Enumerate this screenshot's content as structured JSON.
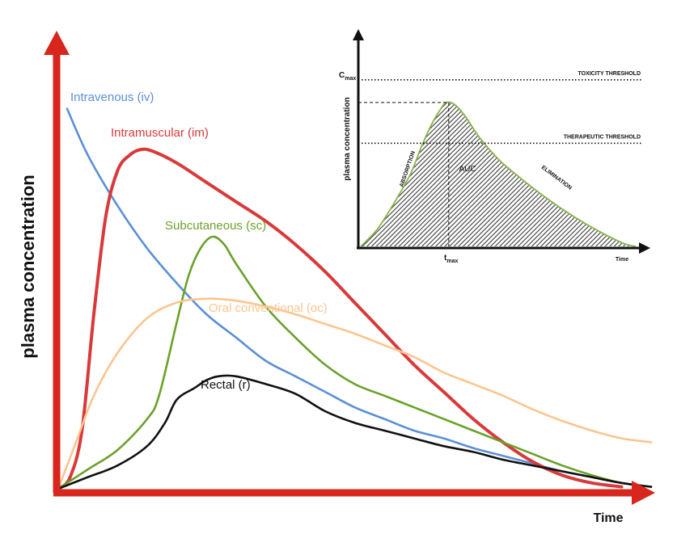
{
  "chart_data": [
    {
      "type": "line",
      "xlabel": "Time",
      "ylabel": "plasma concentration",
      "xlim": [
        0,
        100
      ],
      "ylim": [
        0,
        100
      ],
      "grid": false,
      "axis_color": "#d9261c",
      "series": [
        {
          "name": "Intravenous (iv)",
          "color": "#5b8fd6",
          "points": [
            [
              1.5,
              98
            ],
            [
              5,
              86
            ],
            [
              10,
              73
            ],
            [
              15,
              62
            ],
            [
              20,
              53
            ],
            [
              25,
              45
            ],
            [
              30,
              39
            ],
            [
              35,
              33
            ],
            [
              40,
              29
            ],
            [
              45,
              25
            ],
            [
              50,
              21
            ],
            [
              55,
              18
            ],
            [
              60,
              15
            ],
            [
              65,
              13
            ],
            [
              70,
              10.5
            ],
            [
              75,
              8.5
            ],
            [
              80,
              6.5
            ],
            [
              85,
              4.5
            ],
            [
              90,
              3
            ],
            [
              95,
              1.5
            ],
            [
              100,
              0.5
            ]
          ]
        },
        {
          "name": "Intramuscular (im)",
          "color": "#d83a3a",
          "points": [
            [
              0,
              0
            ],
            [
              2,
              3
            ],
            [
              4,
              15
            ],
            [
              6,
              45
            ],
            [
              8,
              70
            ],
            [
              10,
              82
            ],
            [
              12,
              86
            ],
            [
              14,
              87.5
            ],
            [
              16,
              87
            ],
            [
              20,
              84
            ],
            [
              25,
              79
            ],
            [
              30,
              74
            ],
            [
              35,
              69
            ],
            [
              40,
              63
            ],
            [
              45,
              56
            ],
            [
              50,
              48
            ],
            [
              55,
              40
            ],
            [
              60,
              32
            ],
            [
              65,
              25
            ],
            [
              70,
              18
            ],
            [
              75,
              12
            ],
            [
              80,
              7
            ],
            [
              85,
              3.5
            ],
            [
              90,
              1.5
            ],
            [
              95,
              0.5
            ]
          ]
        },
        {
          "name": "Subcutaneous (sc)",
          "color": "#6aa12a",
          "points": [
            [
              0,
              0
            ],
            [
              5,
              5
            ],
            [
              10,
              10
            ],
            [
              15,
              18
            ],
            [
              17,
              24
            ],
            [
              20,
              43
            ],
            [
              22,
              55
            ],
            [
              24,
              62
            ],
            [
              26,
              65
            ],
            [
              28,
              63
            ],
            [
              30,
              58
            ],
            [
              35,
              47
            ],
            [
              40,
              39
            ],
            [
              45,
              32
            ],
            [
              50,
              27
            ],
            [
              55,
              24
            ],
            [
              60,
              21
            ],
            [
              65,
              18
            ],
            [
              70,
              15
            ],
            [
              75,
              12
            ],
            [
              80,
              9
            ],
            [
              85,
              6
            ],
            [
              90,
              3.5
            ],
            [
              95,
              1.5
            ],
            [
              100,
              0.5
            ]
          ]
        },
        {
          "name": "Oral conventional (oc)",
          "color": "#fbc58f",
          "points": [
            [
              0,
              0
            ],
            [
              3,
              12
            ],
            [
              6,
              24
            ],
            [
              10,
              35
            ],
            [
              15,
              44
            ],
            [
              20,
              48
            ],
            [
              25,
              49
            ],
            [
              30,
              48.5
            ],
            [
              35,
              47
            ],
            [
              40,
              45
            ],
            [
              45,
              42.5
            ],
            [
              50,
              40
            ],
            [
              55,
              37
            ],
            [
              60,
              34
            ],
            [
              65,
              30
            ],
            [
              70,
              27
            ],
            [
              75,
              24
            ],
            [
              80,
              20.5
            ],
            [
              85,
              17.5
            ],
            [
              90,
              15
            ],
            [
              95,
              13
            ],
            [
              100,
              12
            ]
          ]
        },
        {
          "name": "Rectal (r)",
          "color": "#111111",
          "points": [
            [
              0,
              0
            ],
            [
              5,
              3
            ],
            [
              10,
              6
            ],
            [
              15,
              11
            ],
            [
              18,
              17
            ],
            [
              20,
              23
            ],
            [
              23,
              26
            ],
            [
              25,
              28
            ],
            [
              27,
              29
            ],
            [
              30,
              29
            ],
            [
              35,
              27
            ],
            [
              40,
              24.5
            ],
            [
              45,
              20
            ],
            [
              50,
              17
            ],
            [
              55,
              15
            ],
            [
              60,
              13
            ],
            [
              65,
              11
            ],
            [
              70,
              9.5
            ],
            [
              75,
              7.5
            ],
            [
              80,
              6
            ],
            [
              85,
              4.5
            ],
            [
              90,
              3
            ],
            [
              95,
              1.5
            ],
            [
              100,
              0.5
            ]
          ]
        }
      ]
    },
    {
      "type": "area",
      "xlabel": "Time",
      "ylabel": "plasma concentration",
      "xlim": [
        0,
        100
      ],
      "ylim": [
        0,
        100
      ],
      "x_tick_label": {
        "base": "t",
        "sub": "max",
        "x": 32
      },
      "y_tick_label": {
        "base": "C",
        "sub": "max",
        "y": 84
      },
      "thresholds": [
        {
          "label": "TOXICITY THRESHOLD",
          "y": 97
        },
        {
          "label": "THERAPEUTIC THRESHOLD",
          "y": 60
        }
      ],
      "annotations": [
        "ABSORPTION",
        "AUC",
        "ELIMINATION"
      ],
      "series": [
        {
          "name": "",
          "color": "#8ab34a",
          "points": [
            [
              0,
              0
            ],
            [
              6,
              10
            ],
            [
              12,
              25
            ],
            [
              18,
              42
            ],
            [
              22,
              58
            ],
            [
              26,
              72
            ],
            [
              29,
              80
            ],
            [
              31,
              84
            ],
            [
              34,
              83
            ],
            [
              38,
              76
            ],
            [
              43,
              64
            ],
            [
              50,
              51
            ],
            [
              58,
              40
            ],
            [
              66,
              30
            ],
            [
              74,
              21
            ],
            [
              82,
              13
            ],
            [
              90,
              6
            ],
            [
              96,
              1.5
            ],
            [
              100,
              0
            ]
          ]
        }
      ]
    }
  ]
}
